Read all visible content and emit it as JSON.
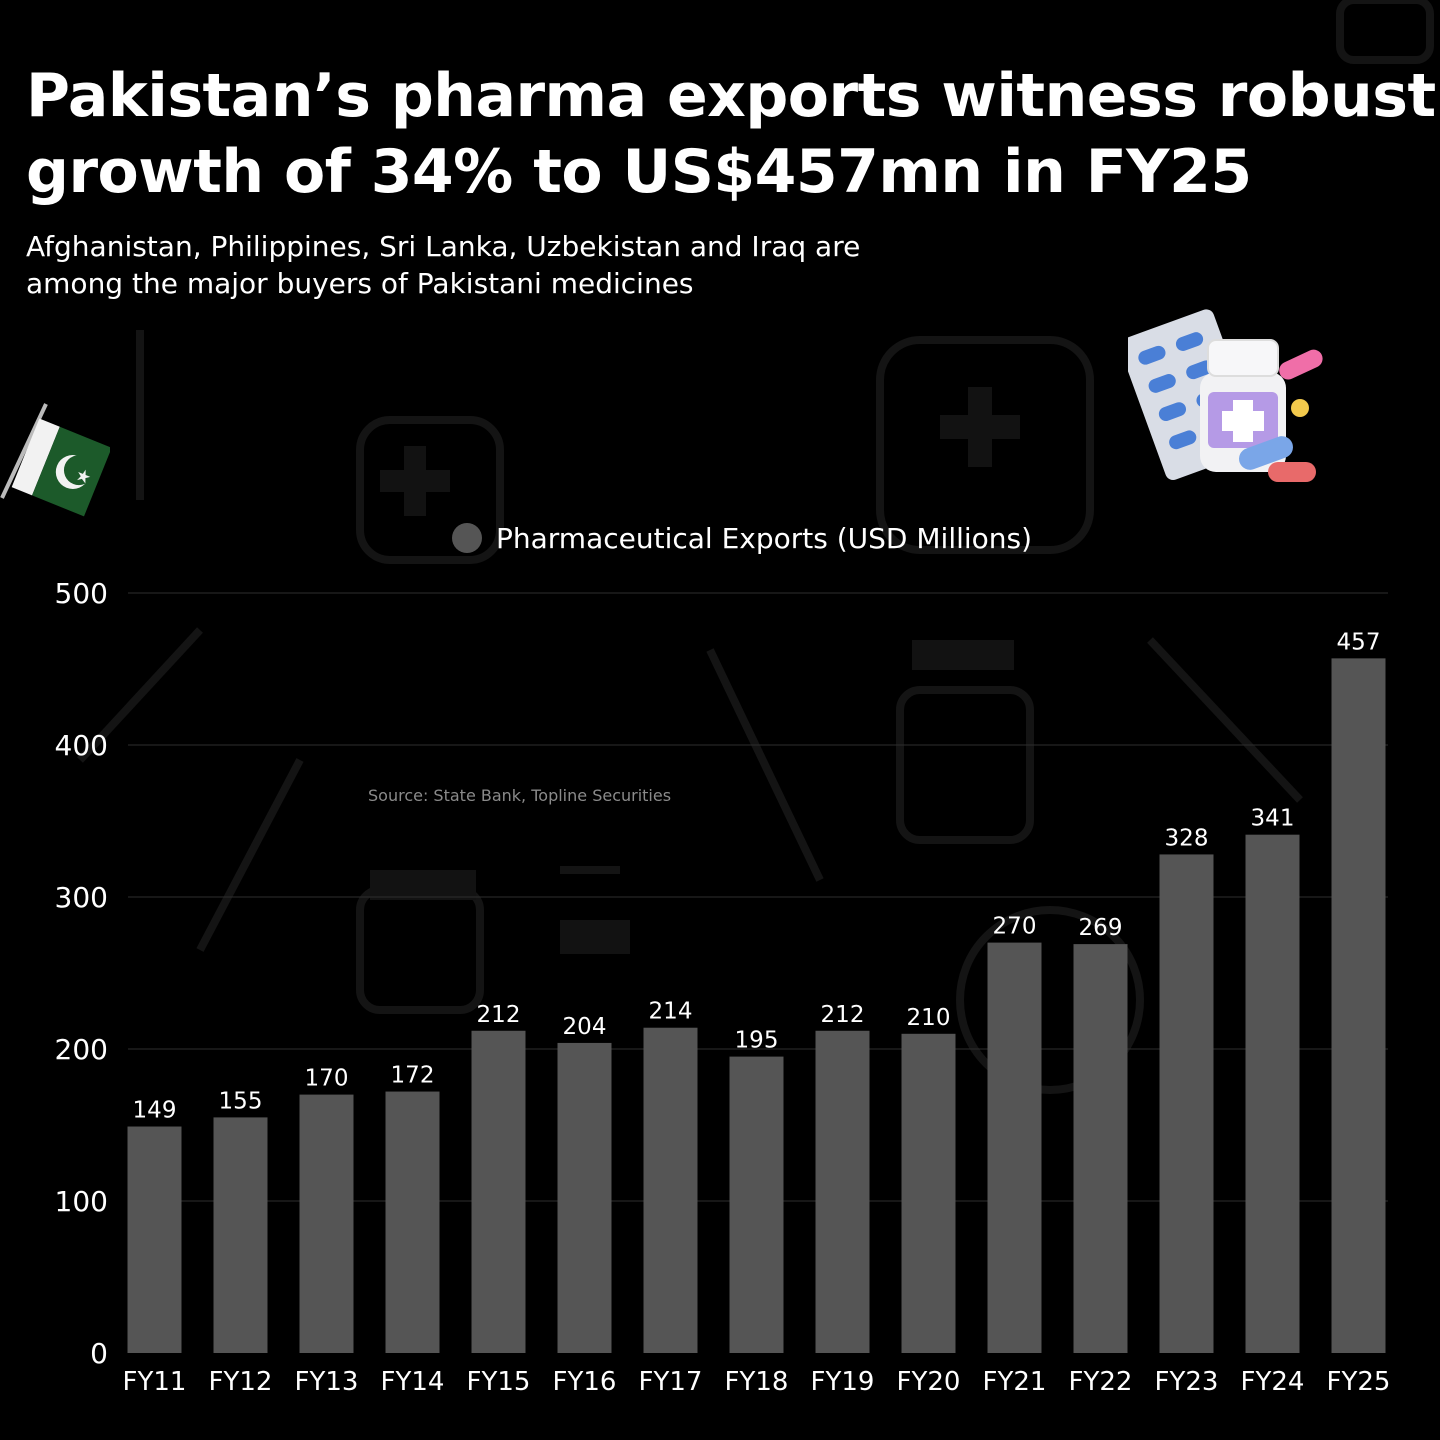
{
  "header": {
    "title_line1": "Pakistan’s pharma exports witness robust",
    "title_line2": "growth of 34% to US$457mn in FY25",
    "subtitle_line1": "Afghanistan, Philippines, Sri Lanka, Uzbekistan and Iraq are",
    "subtitle_line2": "among the major buyers of Pakistani medicines"
  },
  "source": "Source: State Bank, Topline Securities",
  "icons": {
    "flag": "pakistan-flag-icon",
    "medicine": "medicine-bottle-pills-icon"
  },
  "colors": {
    "background": "#000000",
    "bar": "#555555",
    "grid": "#2e2e2e",
    "text": "#ffffff"
  },
  "chart_data": {
    "type": "bar",
    "categories": [
      "FY11",
      "FY12",
      "FY13",
      "FY14",
      "FY15",
      "FY16",
      "FY17",
      "FY18",
      "FY19",
      "FY20",
      "FY21",
      "FY22",
      "FY23",
      "FY24",
      "FY25"
    ],
    "series": [
      {
        "name": "Pharmaceutical Exports (USD Millions)",
        "values": [
          149,
          155,
          170,
          172,
          212,
          204,
          214,
          195,
          212,
          210,
          270,
          269,
          328,
          341,
          457
        ]
      }
    ],
    "yticks": [
      0,
      100,
      200,
      300,
      400,
      500
    ],
    "ylim": [
      0,
      500
    ],
    "grid": true,
    "legend": "top-center",
    "data_labels": true
  }
}
